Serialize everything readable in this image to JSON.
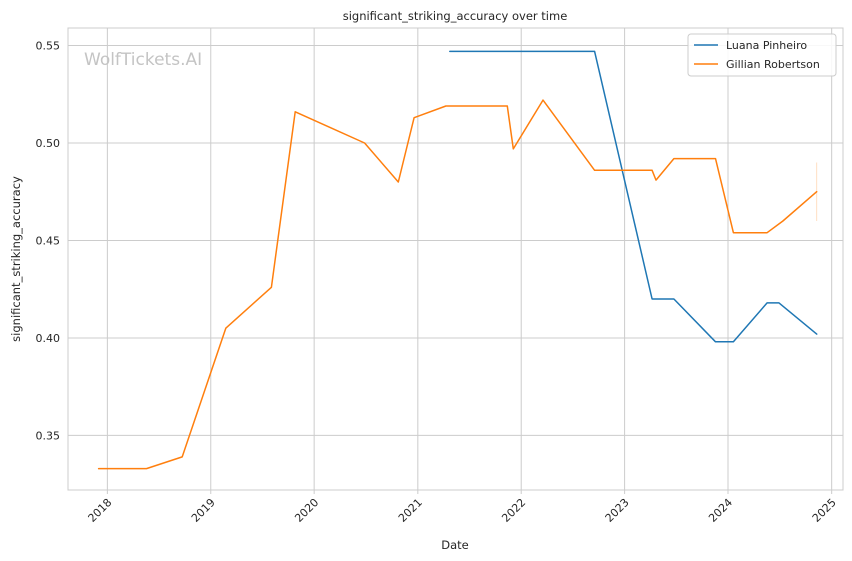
{
  "chart_data": {
    "type": "line",
    "title": "significant_striking_accuracy over time",
    "xlabel": "Date",
    "ylabel": "significant_striking_accuracy",
    "watermark": "WolfTickets.AI",
    "xlim": [
      "2017-08-15",
      "2025-02-10"
    ],
    "ylim": [
      0.322,
      0.559
    ],
    "x_ticks": [
      "2018",
      "2019",
      "2020",
      "2021",
      "2022",
      "2023",
      "2024",
      "2025"
    ],
    "y_ticks": [
      "0.35",
      "0.40",
      "0.45",
      "0.50",
      "0.55"
    ],
    "grid": true,
    "legend_position": "top-right",
    "series": [
      {
        "name": "Luana Pinheiro",
        "color": "#1f77b4",
        "points": [
          [
            "2021-04-24",
            0.547
          ],
          [
            "2022-09-17",
            0.547
          ],
          [
            "2023-04-08",
            0.42
          ],
          [
            "2023-06-24",
            0.42
          ],
          [
            "2023-11-18",
            0.398
          ],
          [
            "2024-01-20",
            0.398
          ],
          [
            "2024-05-18",
            0.418
          ],
          [
            "2024-06-29",
            0.418
          ],
          [
            "2024-11-09",
            0.402
          ]
        ]
      },
      {
        "name": "Gillian Robertson",
        "color": "#ff7f0e",
        "points": [
          [
            "2017-12-01",
            0.333
          ],
          [
            "2018-05-19",
            0.333
          ],
          [
            "2018-09-22",
            0.339
          ],
          [
            "2019-02-23",
            0.405
          ],
          [
            "2019-08-03",
            0.426
          ],
          [
            "2019-10-26",
            0.516
          ],
          [
            "2020-06-27",
            0.5
          ],
          [
            "2020-10-24",
            0.48
          ],
          [
            "2020-12-19",
            0.513
          ],
          [
            "2021-04-10",
            0.519
          ],
          [
            "2021-11-13",
            0.519
          ],
          [
            "2021-12-04",
            0.497
          ],
          [
            "2022-03-19",
            0.522
          ],
          [
            "2022-09-17",
            0.486
          ],
          [
            "2023-04-08",
            0.486
          ],
          [
            "2023-04-22",
            0.481
          ],
          [
            "2023-06-24",
            0.492
          ],
          [
            "2023-11-18",
            0.492
          ],
          [
            "2024-01-20",
            0.454
          ],
          [
            "2024-05-18",
            0.454
          ],
          [
            "2024-07-13",
            0.46
          ],
          [
            "2024-11-09",
            0.475
          ]
        ],
        "error_band": {
          "x": "2024-11-09",
          "low": 0.46,
          "high": 0.49
        }
      }
    ]
  }
}
